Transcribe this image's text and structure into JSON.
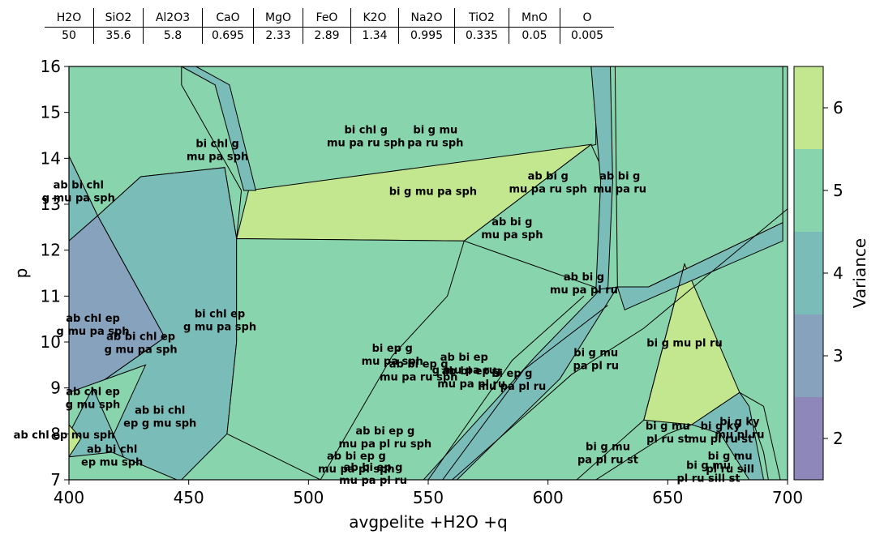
{
  "composition_table": {
    "headers": [
      "H2O",
      "SiO2",
      "Al2O3",
      "CaO",
      "MgO",
      "FeO",
      "K2O",
      "Na2O",
      "TiO2",
      "MnO",
      "O"
    ],
    "values": [
      "50",
      "35.6",
      "5.8",
      "0.695",
      "2.33",
      "2.89",
      "1.34",
      "0.995",
      "0.335",
      "0.05",
      "0.005"
    ]
  },
  "chart_data": {
    "type": "phase_diagram",
    "xlabel": "avgpelite +H2O +q",
    "ylabel": "p",
    "xlim": [
      400,
      700
    ],
    "ylim": [
      7,
      16
    ],
    "xticks": [
      400,
      450,
      500,
      550,
      600,
      650,
      700
    ],
    "yticks": [
      7,
      8,
      9,
      10,
      11,
      12,
      13,
      14,
      15,
      16
    ],
    "colorbar": {
      "label": "Variance",
      "ticks": [
        2,
        3,
        4,
        5,
        6
      ],
      "colors": {
        "2": "#8e87b9",
        "3": "#86a2bd",
        "4": "#7abcb8",
        "5": "#88d4ad",
        "6": "#c2e78f"
      }
    },
    "fields": [
      {
        "label": "bi chl g\nmu pa sph",
        "variance": 5,
        "x": 462,
        "y": 14.1,
        "polygon": [
          [
            400,
            16
          ],
          [
            447,
            16
          ],
          [
            447,
            15.6
          ],
          [
            472,
            13.3
          ],
          [
            470,
            12.25
          ],
          [
            465,
            13.8
          ],
          [
            430,
            13.6
          ],
          [
            412,
            12.75
          ],
          [
            400,
            14.05
          ]
        ]
      },
      {
        "label": "bi chl g\nmu pa ru sph",
        "variance": 5,
        "x": 524,
        "y": 14.4,
        "polygon": [
          [
            447,
            16
          ],
          [
            620,
            16
          ],
          [
            620,
            14.3
          ],
          [
            540,
            13.35
          ],
          [
            475,
            13.3
          ],
          [
            461,
            15.6
          ]
        ]
      },
      {
        "label": "bi g mu\npa ru sph",
        "variance": 5,
        "x": 553,
        "y": 14.4,
        "polygon": []
      },
      {
        "label": "bi g mu pa sph",
        "variance": 6,
        "x": 552,
        "y": 13.2,
        "polygon": [
          [
            475,
            13.3
          ],
          [
            618,
            14.3
          ],
          [
            565,
            12.2
          ],
          [
            470,
            12.25
          ]
        ]
      },
      {
        "label": "ab bi g\nmu pa ru sph",
        "variance": 5,
        "x": 600,
        "y": 13.4,
        "polygon": [
          [
            618,
            14.3
          ],
          [
            625,
            13.5
          ],
          [
            622,
            11.15
          ],
          [
            565,
            12.2
          ]
        ]
      },
      {
        "label": "ab bi g\nmu pa ru",
        "variance": 5,
        "x": 630,
        "y": 13.4,
        "polygon": [
          [
            628,
            16
          ],
          [
            698,
            16
          ],
          [
            698,
            12.6
          ],
          [
            642,
            11.2
          ],
          [
            629,
            11.2
          ]
        ]
      },
      {
        "label": "ab bi g\nmu pa sph",
        "variance": 5,
        "x": 585,
        "y": 12.4,
        "polygon": []
      },
      {
        "label": "ab bi chl\ng mu pa sph",
        "variance": 4,
        "x": 404,
        "y": 13.2,
        "polygon": [
          [
            400,
            14.05
          ],
          [
            412,
            12.75
          ],
          [
            400,
            12.2
          ]
        ]
      },
      {
        "label": "ab chl ep\ng mu pa sph",
        "variance": 4,
        "x": 410,
        "y": 10.3,
        "polygon": [
          [
            400,
            12.2
          ],
          [
            440,
            10.1
          ],
          [
            432,
            9.5
          ],
          [
            400,
            8.9
          ]
        ]
      },
      {
        "label": "bi chl ep\ng mu pa sph",
        "variance": 4,
        "x": 463,
        "y": 10.4,
        "polygon": [
          [
            412,
            12.75
          ],
          [
            430,
            13.6
          ],
          [
            465,
            13.8
          ],
          [
            470,
            12.25
          ],
          [
            470,
            10.0
          ],
          [
            466,
            8.0
          ],
          [
            447,
            7.0
          ],
          [
            427,
            7.0
          ],
          [
            410,
            9.0
          ],
          [
            440,
            10.1
          ]
        ]
      },
      {
        "label": "ab bi chl ep\ng mu pa sph",
        "variance": 3,
        "x": 430,
        "y": 9.9,
        "polygon": [
          [
            400,
            12.2
          ],
          [
            412,
            12.75
          ],
          [
            440,
            10.1
          ],
          [
            410,
            9.0
          ],
          [
            427,
            7.0
          ],
          [
            380,
            7.0
          ],
          [
            400,
            11.9
          ]
        ]
      },
      {
        "label": "ab chl ep\ng mu sph",
        "variance": 5,
        "x": 410,
        "y": 8.7,
        "polygon": [
          [
            400,
            8.9
          ],
          [
            432,
            9.5
          ],
          [
            410,
            7.0
          ],
          [
            400,
            7.0
          ]
        ]
      },
      {
        "label": "ab bi chl\nep g mu sph",
        "variance": 4,
        "x": 438,
        "y": 8.3,
        "polygon": [
          [
            410,
            9.0
          ],
          [
            427,
            7.0
          ],
          [
            400,
            7.0
          ],
          [
            400,
            8.0
          ]
        ]
      },
      {
        "label": "ab chl ep mu sph",
        "variance": 6,
        "x": 398,
        "y": 7.9,
        "polygon": [
          [
            400,
            8.2
          ],
          [
            405,
            7.9
          ],
          [
            400,
            7.5
          ]
        ]
      },
      {
        "label": "ab bi chl\nep mu sph",
        "variance": 5,
        "x": 418,
        "y": 7.45,
        "polygon": [
          [
            400,
            7.5
          ],
          [
            418,
            7.6
          ],
          [
            445,
            7.0
          ],
          [
            400,
            7.0
          ]
        ]
      },
      {
        "label": "bi ep g\nmu pa sph",
        "variance": 5,
        "x": 535,
        "y": 9.65,
        "polygon": [
          [
            470,
            12.25
          ],
          [
            565,
            12.2
          ],
          [
            558,
            11.0
          ],
          [
            535,
            9.7
          ],
          [
            505,
            7.0
          ],
          [
            466,
            8.0
          ],
          [
            470,
            10.0
          ]
        ]
      },
      {
        "label": "bi ep g\nmu pa pl ru",
        "variance": 5,
        "x": 585,
        "y": 9.1,
        "polygon": []
      },
      {
        "label": "ab bi g\nmu pa pl ru",
        "variance": 5,
        "x": 615,
        "y": 11.2,
        "polygon": []
      },
      {
        "label": "bi g mu\npa pl ru",
        "variance": 5,
        "x": 620,
        "y": 9.55,
        "polygon": []
      },
      {
        "label": "bi g mu pl ru",
        "variance": 6,
        "x": 657,
        "y": 9.9,
        "polygon": [
          [
            657,
            11.7
          ],
          [
            680,
            8.9
          ],
          [
            660,
            8.2
          ],
          [
            640,
            8.3
          ]
        ]
      },
      {
        "label": "ab bi ep g\nmu pa pl ru sph",
        "variance": 5,
        "x": 532,
        "y": 7.85,
        "polygon": []
      },
      {
        "label": "bi g mu\npa pl ru st",
        "variance": 5,
        "x": 625,
        "y": 7.5,
        "polygon": []
      },
      {
        "label": "bi g mu\npl ru st",
        "variance": 5,
        "x": 650,
        "y": 7.95,
        "polygon": []
      },
      {
        "label": "bi g ky\nmu pl ru st",
        "variance": 5,
        "x": 672,
        "y": 7.95,
        "polygon": []
      },
      {
        "label": "bi g mu\npl ru sill st",
        "variance": 5,
        "x": 667,
        "y": 7.1,
        "polygon": []
      }
    ],
    "small_field_labels": [
      "ab bi ep\ng mu pa ru",
      "ab bi ep g\nmu pa ru sph",
      "ab bi ep g\nmu pa pl ru",
      "ab bi ep g\nmu pa pl sph",
      "ab bi ep g\nmu pa pl ru",
      "bi g ky\nmu pl ru",
      "bi g mu\npl ru sill"
    ]
  }
}
